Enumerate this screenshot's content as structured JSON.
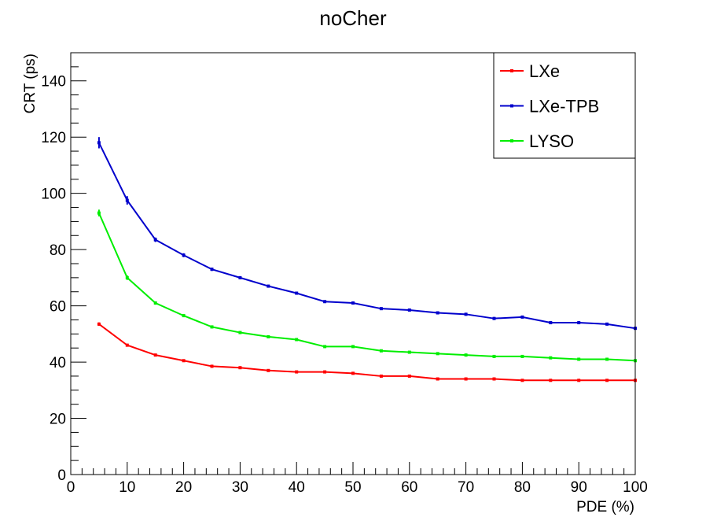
{
  "chart_data": {
    "type": "line",
    "title": "noCher",
    "xlabel": "PDE (%)",
    "ylabel": "CRT (ps)",
    "xlim": [
      0,
      100
    ],
    "ylim": [
      0,
      150
    ],
    "x_ticks": [
      0,
      10,
      20,
      30,
      40,
      50,
      60,
      70,
      80,
      90,
      100
    ],
    "y_ticks": [
      0,
      20,
      40,
      60,
      80,
      100,
      120,
      140
    ],
    "grid": false,
    "legend_position": "top-right",
    "x": [
      5,
      10,
      15,
      20,
      25,
      30,
      35,
      40,
      45,
      50,
      55,
      60,
      65,
      70,
      75,
      80,
      85,
      90,
      95,
      100
    ],
    "series": [
      {
        "name": "LXe",
        "color": "#ff0000",
        "values": [
          53.5,
          46,
          42.5,
          40.5,
          38.5,
          38,
          37,
          36.5,
          36.5,
          36,
          35,
          35,
          34,
          34,
          34,
          33.5,
          33.5,
          33.5,
          33.5,
          33.5
        ],
        "errors": [
          0.6,
          0.5,
          0.4,
          0.4,
          0.4,
          0.4,
          0.3,
          0.3,
          0.3,
          0.3,
          0.3,
          0.3,
          0.3,
          0.3,
          0.3,
          0.3,
          0.3,
          0.3,
          0.3,
          0.3
        ]
      },
      {
        "name": "LXe-TPB",
        "color": "#0000cc",
        "values": [
          118,
          97.5,
          83.5,
          78,
          73,
          70,
          67,
          64.5,
          61.5,
          61,
          59,
          58.5,
          57.5,
          57,
          55.5,
          56,
          54,
          54,
          53.5,
          52
        ],
        "errors": [
          2,
          1.5,
          0.8,
          0.7,
          0.6,
          0.5,
          0.5,
          0.5,
          0.5,
          0.5,
          0.5,
          0.5,
          0.5,
          0.5,
          0.5,
          0.5,
          0.5,
          0.5,
          0.5,
          0.5
        ]
      },
      {
        "name": "LYSO",
        "color": "#00ee00",
        "values": [
          93,
          70,
          61,
          56.5,
          52.5,
          50.5,
          49,
          48,
          45.5,
          45.5,
          44,
          43.5,
          43,
          42.5,
          42,
          42,
          41.5,
          41,
          41,
          40.5
        ],
        "errors": [
          1.2,
          0.8,
          0.6,
          0.5,
          0.5,
          0.4,
          0.4,
          0.4,
          0.4,
          0.4,
          0.4,
          0.4,
          0.4,
          0.4,
          0.4,
          0.4,
          0.4,
          0.4,
          0.4,
          0.4
        ]
      }
    ]
  }
}
